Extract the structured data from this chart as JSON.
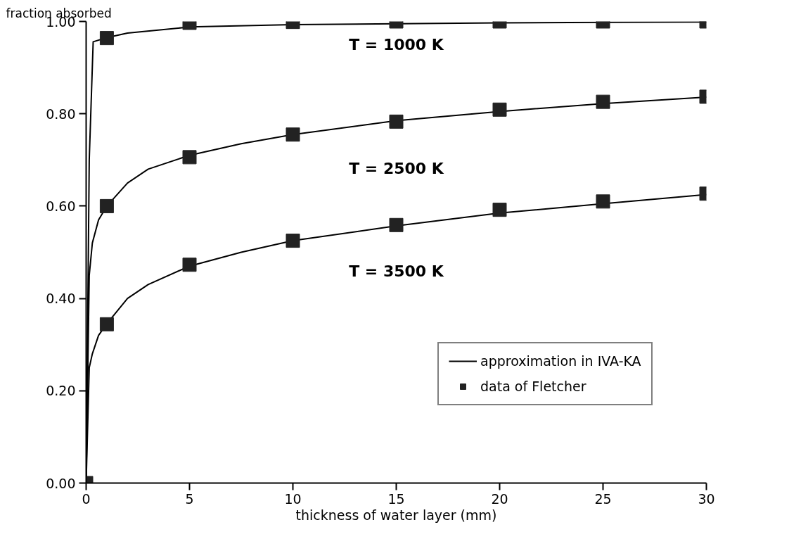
{
  "chart_data": {
    "type": "line",
    "xlabel": "thickness of water layer (mm)",
    "ylabel": "fraction absorbed",
    "xlim": [
      0,
      30
    ],
    "ylim": [
      0,
      1
    ],
    "xticks": [
      0,
      5,
      10,
      15,
      20,
      25,
      30
    ],
    "yticks": [
      {
        "value": 0,
        "label": "0.00"
      },
      {
        "value": 0.2,
        "label": "0.20"
      },
      {
        "value": 0.4,
        "label": "0.40"
      },
      {
        "value": 0.6,
        "label": "0.60"
      },
      {
        "value": 0.8,
        "label": "0.80"
      },
      {
        "value": 1,
        "label": "1.00"
      }
    ],
    "grid": false,
    "legend": "bottom right",
    "marker": "none",
    "line_style": "solid",
    "series": [
      {
        "name": "approximation in IVA-KA",
        "color": "#000000",
        "x": [
          0,
          0.15,
          0.34,
          1,
          2,
          5,
          10,
          15,
          20,
          25,
          30
        ],
        "values": [
          0,
          0.7,
          0.956,
          0.965,
          0.975,
          0.988,
          0.993,
          0.995,
          0.997,
          0.998,
          0.999
        ]
      },
      {
        "color": "#000000",
        "x": [
          0,
          0.15,
          0.3,
          0.6,
          1,
          2,
          3,
          5,
          7.5,
          10,
          15,
          20,
          25,
          30
        ],
        "values": [
          0,
          0.45,
          0.52,
          0.57,
          0.6,
          0.65,
          0.68,
          0.71,
          0.735,
          0.755,
          0.785,
          0.805,
          0.822,
          0.836
        ]
      },
      {
        "color": "#000000",
        "x": [
          0,
          0.15,
          0.3,
          0.6,
          1,
          2,
          3,
          5,
          7.5,
          10,
          15,
          20,
          25,
          30
        ],
        "values": [
          0,
          0.25,
          0.28,
          0.32,
          0.345,
          0.4,
          0.43,
          0.47,
          0.5,
          0.525,
          0.557,
          0.585,
          0.605,
          0.625
        ]
      },
      {
        "name": "data of Fletcher",
        "type": "scatter",
        "marker": "square",
        "color": "#222222",
        "x": [
          0,
          1,
          5,
          10,
          15,
          20,
          25,
          30,
          1,
          5,
          10,
          15,
          20,
          25,
          30,
          1,
          5,
          10,
          15,
          20,
          25,
          30
        ],
        "values": [
          0,
          0.964,
          0.997,
          0.999,
          1.0,
          1.0,
          1.0,
          1.0,
          0.6,
          0.706,
          0.755,
          0.783,
          0.809,
          0.826,
          0.837,
          0.344,
          0.473,
          0.525,
          0.559,
          0.592,
          0.61,
          0.627
        ]
      }
    ],
    "annotations": [
      "T = 1000 K",
      "T = 2500 K",
      "T = 3500 K"
    ]
  }
}
